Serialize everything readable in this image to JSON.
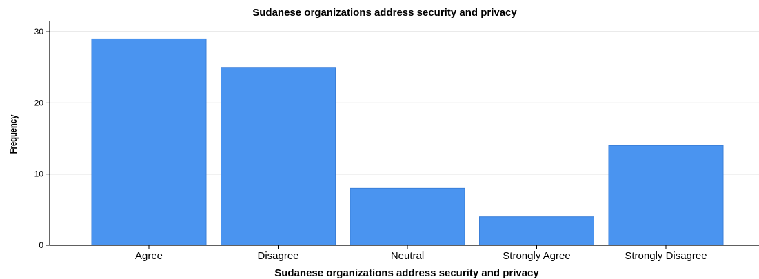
{
  "chart_data": {
    "type": "bar",
    "title": "Sudanese organizations address security and privacy",
    "xlabel": "Sudanese organizations address security and privacy",
    "ylabel": "Frequency",
    "categories": [
      "Agree",
      "Disagree",
      "Neutral",
      "Strongly Agree",
      "Strongly Disagree"
    ],
    "values": [
      29,
      25,
      8,
      4,
      14
    ],
    "ylim": [
      0,
      31
    ],
    "yticks": [
      0,
      10,
      20,
      30
    ],
    "grid": true,
    "colors": {
      "bar": "#4a94f0",
      "bar_edge": "#3b7fd8",
      "grid": "#c8c8c8",
      "axis": "#000000"
    }
  }
}
